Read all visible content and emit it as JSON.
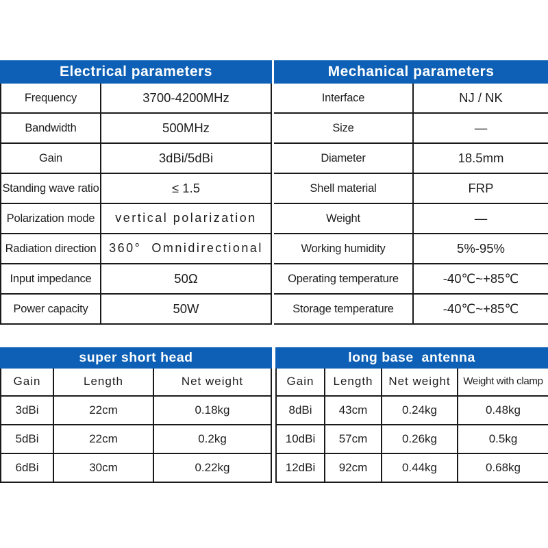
{
  "theme": {
    "header_blue": "#0d60b5",
    "header_text": "#ffffff",
    "border_black": "#1a1a1a",
    "text_black": "#1d1d1d",
    "background": "#ffffff"
  },
  "electrical": {
    "title": "Electrical parameters",
    "rows": [
      {
        "label": "Frequency",
        "value": "3700-4200MHz"
      },
      {
        "label": "Bandwidth",
        "value": "500MHz"
      },
      {
        "label": "Gain",
        "value": "3dBi/5dBi"
      },
      {
        "label": "Standing wave ratio",
        "value": "≤ 1.5"
      },
      {
        "label": "Polarization mode",
        "value": "vertical polarization"
      },
      {
        "label": "Radiation direction",
        "value": "360°  Omnidirectional"
      },
      {
        "label": "Input impedance",
        "value": "50Ω"
      },
      {
        "label": "Power capacity",
        "value": "50W"
      }
    ]
  },
  "mechanical": {
    "title": "Mechanical parameters",
    "rows": [
      {
        "label": "Interface",
        "value": "NJ / NK"
      },
      {
        "label": "Size",
        "value": "—"
      },
      {
        "label": "Diameter",
        "value": "18.5mm"
      },
      {
        "label": "Shell material",
        "value": "FRP"
      },
      {
        "label": "Weight",
        "value": "—"
      },
      {
        "label": "Working humidity",
        "value": "5%-95%"
      },
      {
        "label": "Operating temperature",
        "value": "-40℃~+85℃"
      },
      {
        "label": "Storage temperature",
        "value": "-40℃~+85℃"
      }
    ]
  },
  "short_head": {
    "title": "super short head",
    "columns": [
      "Gain",
      "Length",
      "Net weight"
    ],
    "rows": [
      [
        "3dBi",
        "22cm",
        "0.18kg"
      ],
      [
        "5dBi",
        "22cm",
        "0.2kg"
      ],
      [
        "6dBi",
        "30cm",
        "0.22kg"
      ]
    ]
  },
  "long_base": {
    "title": "long base  antenna",
    "columns": [
      "Gain",
      "Length",
      "Net weight",
      "Weight with clamp"
    ],
    "rows": [
      [
        "8dBi",
        "43cm",
        "0.24kg",
        "0.48kg"
      ],
      [
        "10dBi",
        "57cm",
        "0.26kg",
        "0.5kg"
      ],
      [
        "12dBi",
        "92cm",
        "0.44kg",
        "0.68kg"
      ]
    ]
  }
}
